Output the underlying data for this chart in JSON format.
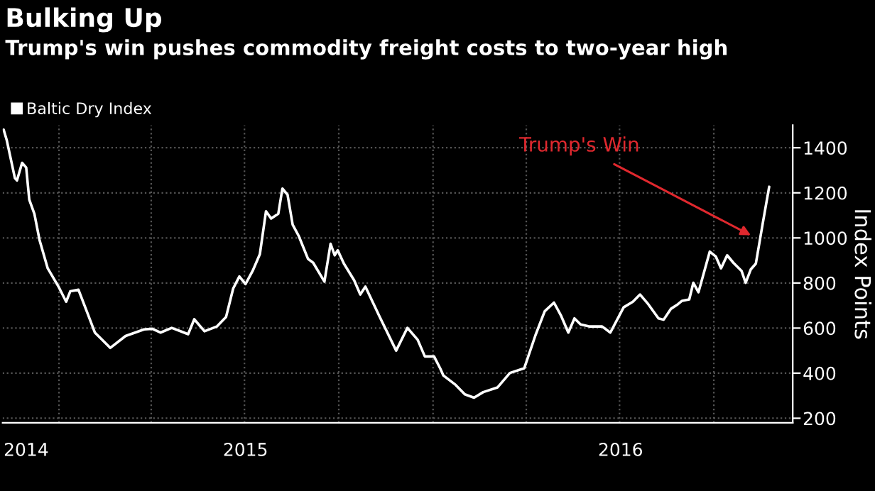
{
  "chart_data": {
    "type": "line",
    "title": "Bulking Up",
    "subtitle": "Trump's win pushes commodity freight costs to two-year high",
    "ylabel": "Index Points",
    "legend": "top left",
    "grid": true,
    "line_style": "solid",
    "marker": "none",
    "annotations": [
      "Trump's Win"
    ],
    "xlim": [
      "2014-11-07",
      "2016-12-17"
    ],
    "ylim": [
      180,
      1500
    ],
    "yticks": [
      200,
      400,
      600,
      800,
      1000,
      1200,
      1400
    ],
    "xticks": [
      {
        "value": "2014-11-30",
        "label": "2014"
      },
      {
        "value": "2015-01-01",
        "label": null
      },
      {
        "value": "2015-04-01",
        "label": null
      },
      {
        "value": "2015-07-01",
        "label": null
      },
      {
        "value": "2015-07-02",
        "label": "2015"
      },
      {
        "value": "2015-10-01",
        "label": null
      },
      {
        "value": "2016-01-01",
        "label": null
      },
      {
        "value": "2016-04-01",
        "label": null
      },
      {
        "value": "2016-07-01",
        "label": null
      },
      {
        "value": "2016-07-02",
        "label": "2016"
      },
      {
        "value": "2016-10-01",
        "label": null
      }
    ],
    "series": [
      {
        "name": "Baltic Dry Index",
        "color": "#ffffff",
        "x": [
          "2014-11-08",
          "2014-11-11",
          "2014-11-19",
          "2014-11-21",
          "2014-11-26",
          "2014-11-30",
          "2014-12-03",
          "2014-12-08",
          "2014-12-13",
          "2014-12-21",
          "2015-01-01",
          "2015-01-08",
          "2015-01-12",
          "2015-01-20",
          "2015-01-29",
          "2015-02-05",
          "2015-02-11",
          "2015-02-20",
          "2015-03-07",
          "2015-03-25",
          "2015-04-02",
          "2015-04-10",
          "2015-04-21",
          "2015-05-07",
          "2015-05-13",
          "2015-05-23",
          "2015-06-04",
          "2015-06-13",
          "2015-06-20",
          "2015-06-26",
          "2015-07-02",
          "2015-07-09",
          "2015-07-16",
          "2015-07-22",
          "2015-07-27",
          "2015-08-03",
          "2015-08-07",
          "2015-08-12",
          "2015-08-17",
          "2015-08-23",
          "2015-09-01",
          "2015-09-06",
          "2015-09-17",
          "2015-09-23",
          "2015-09-27",
          "2015-09-30",
          "2015-10-06",
          "2015-10-16",
          "2015-10-22",
          "2015-10-27",
          "2015-11-10",
          "2015-11-26",
          "2015-12-07",
          "2015-12-17",
          "2015-12-24",
          "2016-01-02",
          "2016-01-08",
          "2016-01-11",
          "2016-01-23",
          "2016-02-01",
          "2016-02-10",
          "2016-02-19",
          "2016-03-04",
          "2016-03-16",
          "2016-03-30",
          "2016-04-10",
          "2016-04-19",
          "2016-04-28",
          "2016-05-05",
          "2016-05-12",
          "2016-05-18",
          "2016-05-24",
          "2016-06-02",
          "2016-06-14",
          "2016-06-22",
          "2016-07-05",
          "2016-07-14",
          "2016-07-21",
          "2016-07-29",
          "2016-08-08",
          "2016-08-13",
          "2016-08-20",
          "2016-08-27",
          "2016-08-31",
          "2016-09-07",
          "2016-09-11",
          "2016-09-16",
          "2016-09-27",
          "2016-10-03",
          "2016-10-08",
          "2016-10-14",
          "2016-10-20",
          "2016-10-28",
          "2016-11-01",
          "2016-11-06",
          "2016-11-11",
          "2016-11-18",
          "2016-11-24"
        ],
        "values": [
          1480,
          1434,
          1265,
          1255,
          1333,
          1312,
          1170,
          1107,
          991,
          865,
          780,
          717,
          763,
          770,
          664,
          580,
          553,
          512,
          565,
          594,
          597,
          580,
          601,
          573,
          639,
          586,
          607,
          649,
          776,
          829,
          795,
          854,
          928,
          1118,
          1086,
          1107,
          1219,
          1192,
          1059,
          1008,
          907,
          890,
          806,
          974,
          923,
          945,
          886,
          812,
          749,
          784,
          649,
          500,
          601,
          548,
          474,
          474,
          421,
          390,
          348,
          306,
          291,
          316,
          337,
          401,
          422,
          569,
          675,
          713,
          654,
          580,
          643,
          616,
          607,
          607,
          580,
          692,
          717,
          749,
          706,
          643,
          637,
          685,
          706,
          721,
          727,
          801,
          759,
          939,
          917,
          865,
          923,
          890,
          854,
          801,
          860,
          886,
          1072,
          1227
        ]
      }
    ]
  }
}
